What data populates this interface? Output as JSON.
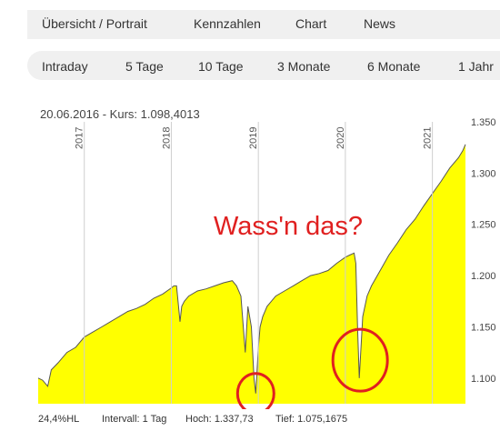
{
  "nav": {
    "tabs": [
      {
        "label": "Übersicht / Portrait"
      },
      {
        "label": "Kennzahlen"
      },
      {
        "label": "Chart"
      },
      {
        "label": "News"
      }
    ]
  },
  "ranges": {
    "items": [
      {
        "label": "Intraday"
      },
      {
        "label": "5 Tage"
      },
      {
        "label": "10 Tage"
      },
      {
        "label": "3 Monate"
      },
      {
        "label": "6 Monate"
      },
      {
        "label": "1 Jahr"
      }
    ]
  },
  "header": {
    "date": "20.06.2016",
    "separator": "-",
    "kurs_label": "Kurs:",
    "kurs_value": "1.098,4013"
  },
  "chart_data": {
    "type": "area",
    "x_ticks": [
      "2017",
      "2018",
      "2019",
      "2020",
      "2021"
    ],
    "y_ticks": [
      "1.350",
      "1.300",
      "1.250",
      "1.200",
      "1.150",
      "1.100"
    ],
    "y_tick_values": [
      1350,
      1300,
      1250,
      1200,
      1150,
      1100
    ],
    "ylim": [
      1075,
      1350
    ],
    "fill_color": "#ffff00",
    "line_color": "#555555",
    "annotation_color": "#e02020",
    "annotation_text": "Wass'n das?",
    "series": [
      {
        "x": [
          2016.47,
          2016.52,
          2016.58,
          2016.62,
          2016.7,
          2016.8,
          2016.9,
          2017.0,
          2017.1,
          2017.2,
          2017.3,
          2017.4,
          2017.5,
          2017.6,
          2017.7,
          2017.8,
          2017.9,
          2018.0,
          2018.03,
          2018.06,
          2018.1,
          2018.12,
          2018.15,
          2018.2,
          2018.3,
          2018.4,
          2018.5,
          2018.6,
          2018.7,
          2018.75,
          2018.8,
          2018.85,
          2018.88,
          2018.92,
          2018.95,
          2018.97,
          2019.0,
          2019.02,
          2019.05,
          2019.1,
          2019.2,
          2019.3,
          2019.4,
          2019.5,
          2019.6,
          2019.7,
          2019.8,
          2019.9,
          2020.0,
          2020.05,
          2020.1,
          2020.12,
          2020.14,
          2020.16,
          2020.18,
          2020.2,
          2020.25,
          2020.3,
          2020.4,
          2020.5,
          2020.6,
          2020.7,
          2020.8,
          2020.9,
          2021.0,
          2021.1,
          2021.2,
          2021.3,
          2021.35,
          2021.38
        ],
        "y": [
          1100,
          1098,
          1092,
          1108,
          1115,
          1125,
          1130,
          1140,
          1145,
          1150,
          1155,
          1160,
          1165,
          1168,
          1172,
          1178,
          1182,
          1188,
          1190,
          1190,
          1155,
          1170,
          1175,
          1180,
          1185,
          1187,
          1190,
          1193,
          1195,
          1190,
          1180,
          1125,
          1170,
          1150,
          1100,
          1085,
          1130,
          1150,
          1160,
          1170,
          1180,
          1185,
          1190,
          1195,
          1200,
          1202,
          1205,
          1212,
          1218,
          1220,
          1222,
          1212,
          1150,
          1100,
          1130,
          1160,
          1180,
          1190,
          1205,
          1220,
          1232,
          1245,
          1255,
          1268,
          1280,
          1292,
          1305,
          1315,
          1322,
          1328
        ]
      }
    ]
  },
  "footer": {
    "hl": "24,4%HL",
    "intervall": "Intervall: 1 Tag",
    "hoch_label": "Hoch:",
    "hoch_value": "1.337,73",
    "tief_label": "Tief:",
    "tief_value": "1.075,1675"
  }
}
